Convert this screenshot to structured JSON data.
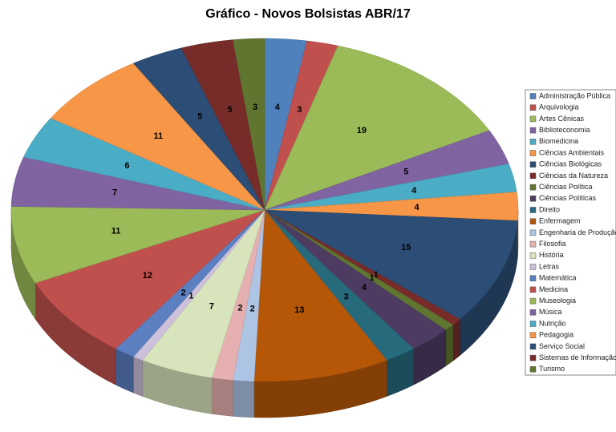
{
  "chart_data": {
    "type": "pie",
    "title": "Gráfico - Novos Bolsistas ABR/17",
    "categories": [
      "Administração Pública",
      "Arquivologia",
      "Artes Cênicas",
      "Biblioteconomia",
      "Biomedicina",
      "Ciências Ambientais",
      "Ciências Biológicas",
      "Ciências da Natureza",
      "Ciências Política",
      "Ciências Políticas",
      "Direito",
      "Enfermagem",
      "Engenharia de Produção",
      "Filosofia",
      "História",
      "Letras",
      "Matemática",
      "Medicina",
      "Museologia",
      "Música",
      "Nutrição",
      "Pedagogia",
      "Serviço Social",
      "Sistemas de Informação",
      "Turismo"
    ],
    "values": [
      4,
      3,
      19,
      5,
      4,
      4,
      15,
      1,
      1,
      4,
      3,
      13,
      2,
      2,
      7,
      1,
      2,
      12,
      11,
      7,
      6,
      11,
      5,
      5,
      3
    ],
    "colors": [
      "#4f81bd",
      "#c0504d",
      "#9bbb59",
      "#8064a2",
      "#4bacc6",
      "#f79646",
      "#2c4d75",
      "#772c2a",
      "#5f7530",
      "#4d3b62",
      "#276a7c",
      "#b65708",
      "#aec4e5",
      "#e6b0b0",
      "#d8e4bc",
      "#ccc0da",
      "#5b7fc0",
      "#c0504d",
      "#9bbb59",
      "#8064a2",
      "#4bacc6",
      "#f79646",
      "#2c4d75",
      "#772c2a",
      "#5f7530"
    ],
    "legend": "right"
  }
}
